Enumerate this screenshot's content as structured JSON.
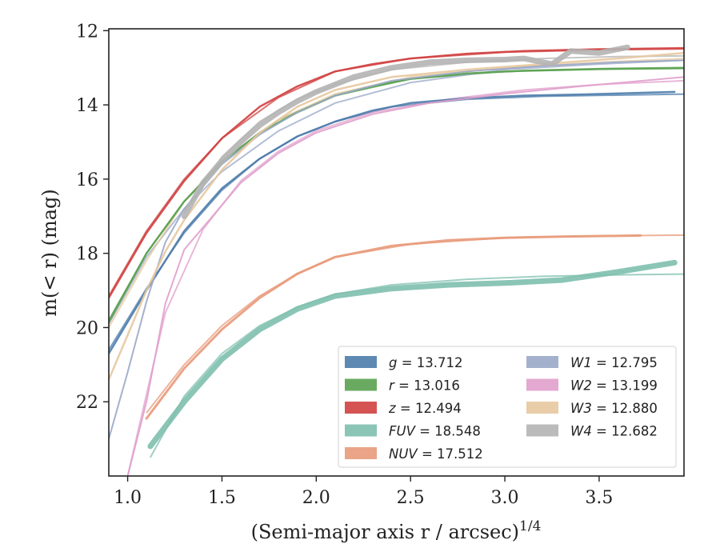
{
  "chart_data": {
    "type": "line",
    "title": "",
    "xlabel_main": "(Semi-major axis r / arcsec)",
    "xlabel_sup": "1/4",
    "ylabel": "m(< r) (mag)",
    "xlim": [
      0.9,
      3.95
    ],
    "ylim": [
      24.0,
      11.95
    ],
    "y_inverted": true,
    "x_ticks": [
      1.0,
      1.5,
      2.0,
      2.5,
      3.0,
      3.5
    ],
    "x_tick_labels": [
      "1.0",
      "1.5",
      "2.0",
      "2.5",
      "3.0",
      "3.5"
    ],
    "y_ticks": [
      12,
      14,
      16,
      18,
      20,
      22
    ],
    "y_tick_labels": [
      "12",
      "14",
      "16",
      "18",
      "20",
      "22"
    ],
    "grid": false,
    "legend_position": "lower-right",
    "legend_columns": 2,
    "series": [
      {
        "name": "g",
        "label": "g = 13.712",
        "color": "#4c7cab",
        "band_width": 2.5,
        "x": [
          0.9,
          1.1,
          1.3,
          1.5,
          1.7,
          1.9,
          2.1,
          2.3,
          2.5,
          2.8,
          3.1,
          3.4,
          3.9
        ],
        "y": [
          20.7,
          19.0,
          17.4,
          16.25,
          15.45,
          14.85,
          14.45,
          14.15,
          13.95,
          13.82,
          13.75,
          13.72,
          13.65
        ],
        "fit_x": [
          0.9,
          1.1,
          1.3,
          1.5,
          1.7,
          1.9,
          2.1,
          2.4,
          2.8,
          3.2,
          3.95
        ],
        "fit_y": [
          20.6,
          18.95,
          17.45,
          16.3,
          15.45,
          14.85,
          14.45,
          14.05,
          13.85,
          13.77,
          13.71
        ]
      },
      {
        "name": "r",
        "label": "r = 13.016",
        "color": "#59a14f",
        "band_width": 2.5,
        "x": [
          0.9,
          1.1,
          1.3,
          1.5,
          1.7,
          1.9,
          2.1,
          2.3,
          2.5,
          2.8,
          3.1,
          3.5,
          3.95
        ],
        "y": [
          19.85,
          18.0,
          16.6,
          15.55,
          14.75,
          14.2,
          13.75,
          13.5,
          13.3,
          13.15,
          13.08,
          13.03,
          13.0
        ],
        "fit_x": [
          0.9,
          1.1,
          1.3,
          1.5,
          1.8,
          2.1,
          2.5,
          3.0,
          3.5,
          3.95
        ],
        "fit_y": [
          19.8,
          18.0,
          16.6,
          15.5,
          14.4,
          13.75,
          13.3,
          13.1,
          13.04,
          13.02
        ]
      },
      {
        "name": "z",
        "label": "z = 12.494",
        "color": "#d04040",
        "band_width": 2.5,
        "x": [
          0.9,
          1.1,
          1.3,
          1.5,
          1.7,
          1.9,
          2.1,
          2.3,
          2.5,
          2.8,
          3.1,
          3.5,
          3.95
        ],
        "y": [
          19.2,
          17.45,
          16.05,
          14.9,
          14.05,
          13.5,
          13.1,
          12.9,
          12.75,
          12.62,
          12.55,
          12.5,
          12.47
        ],
        "fit_x": [
          0.9,
          1.1,
          1.3,
          1.5,
          1.8,
          2.1,
          2.5,
          3.0,
          3.5,
          3.95
        ],
        "fit_y": [
          19.15,
          17.4,
          16.0,
          14.9,
          13.8,
          13.1,
          12.75,
          12.58,
          12.52,
          12.49
        ]
      },
      {
        "name": "FUV",
        "label": "FUV = 18.548",
        "color": "#7ebfad",
        "band_width": 7,
        "x": [
          1.12,
          1.3,
          1.5,
          1.7,
          1.9,
          2.1,
          2.4,
          2.7,
          3.0,
          3.3,
          3.6,
          3.9
        ],
        "y": [
          23.2,
          22.0,
          20.85,
          20.05,
          19.5,
          19.15,
          18.95,
          18.85,
          18.8,
          18.72,
          18.5,
          18.25
        ],
        "fit_x": [
          1.12,
          1.3,
          1.5,
          1.7,
          1.9,
          2.1,
          2.4,
          2.8,
          3.2,
          3.6,
          3.95
        ],
        "fit_y": [
          23.5,
          21.85,
          20.7,
          19.95,
          19.45,
          19.1,
          18.85,
          18.7,
          18.62,
          18.58,
          18.56
        ]
      },
      {
        "name": "NUV",
        "label": "NUV = 17.512",
        "color": "#e89a7a",
        "band_width": 3,
        "x": [
          1.1,
          1.3,
          1.5,
          1.7,
          1.9,
          2.1,
          2.4,
          2.7,
          3.0,
          3.3,
          3.72
        ],
        "y": [
          22.45,
          21.1,
          20.05,
          19.2,
          18.55,
          18.1,
          17.8,
          17.65,
          17.58,
          17.55,
          17.52
        ],
        "fit_x": [
          1.1,
          1.3,
          1.5,
          1.7,
          1.9,
          2.1,
          2.5,
          3.0,
          3.5,
          3.95
        ],
        "fit_y": [
          22.3,
          21.0,
          19.95,
          19.15,
          18.55,
          18.1,
          17.75,
          17.58,
          17.53,
          17.51
        ]
      },
      {
        "name": "W1",
        "label": "W1 = 12.795",
        "color": "#9aa8c8",
        "band_width": 2,
        "x": [
          0.9,
          1.0,
          1.1,
          1.2,
          1.3,
          1.5,
          1.7,
          1.9,
          2.1,
          2.4,
          2.8,
          3.2,
          3.6,
          3.95
        ],
        "y": [
          23.0,
          21.2,
          19.3,
          17.7,
          16.8,
          15.6,
          14.8,
          14.2,
          13.75,
          13.35,
          13.1,
          12.95,
          12.85,
          12.8
        ],
        "fit_x": [
          0.9,
          1.1,
          1.3,
          1.5,
          1.8,
          2.1,
          2.5,
          3.0,
          3.5,
          3.95
        ],
        "fit_y": [
          19.9,
          18.1,
          16.8,
          15.8,
          14.7,
          13.95,
          13.4,
          13.05,
          12.9,
          12.8
        ]
      },
      {
        "name": "W2",
        "label": "W2 = 13.199",
        "color": "#e0a0cc",
        "band_width": 2,
        "x": [
          1.0,
          1.1,
          1.2,
          1.3,
          1.4,
          1.6,
          1.8,
          2.0,
          2.3,
          2.6,
          3.0,
          3.4,
          3.95
        ],
        "y": [
          24.0,
          22.0,
          19.35,
          17.9,
          17.3,
          16.1,
          15.3,
          14.75,
          14.25,
          13.95,
          13.7,
          13.5,
          13.25
        ],
        "fit_x": [
          1.0,
          1.2,
          1.4,
          1.6,
          1.8,
          2.0,
          2.3,
          2.7,
          3.1,
          3.5,
          3.95
        ],
        "fit_y": [
          24.0,
          19.6,
          17.35,
          16.05,
          15.25,
          14.7,
          14.2,
          13.85,
          13.6,
          13.45,
          13.35
        ]
      },
      {
        "name": "W3",
        "label": "W3 = 12.880",
        "color": "#e7c89e",
        "band_width": 2.5,
        "x": [
          0.9,
          1.0,
          1.1,
          1.2,
          1.3,
          1.5,
          1.7,
          1.9,
          2.1,
          2.4,
          2.8,
          3.2,
          3.6,
          3.95
        ],
        "y": [
          21.4,
          20.2,
          19.0,
          17.95,
          17.1,
          15.75,
          14.75,
          14.05,
          13.6,
          13.25,
          13.05,
          12.9,
          12.75,
          12.6
        ],
        "fit_x": [
          0.9,
          1.1,
          1.3,
          1.5,
          1.8,
          2.1,
          2.5,
          3.0,
          3.5,
          3.95
        ],
        "fit_y": [
          20.0,
          18.2,
          16.6,
          15.5,
          14.4,
          13.7,
          13.25,
          13.0,
          12.85,
          12.75
        ]
      },
      {
        "name": "W4",
        "label": "W4 = 12.682",
        "color": "#b4b4b4",
        "band_width": 7,
        "x": [
          1.3,
          1.4,
          1.5,
          1.6,
          1.7,
          1.8,
          1.9,
          2.0,
          2.1,
          2.2,
          2.4,
          2.6,
          2.8,
          3.0,
          3.1,
          3.25,
          3.35,
          3.5,
          3.65
        ],
        "y": [
          17.0,
          16.1,
          15.5,
          15.0,
          14.55,
          14.2,
          13.9,
          13.65,
          13.45,
          13.25,
          13.0,
          12.85,
          12.8,
          12.78,
          12.75,
          12.9,
          12.55,
          12.6,
          12.45
        ],
        "fit_x": [
          1.3,
          1.5,
          1.7,
          1.9,
          2.1,
          2.4,
          2.8,
          3.2,
          3.6,
          3.95
        ],
        "fit_y": [
          16.9,
          15.4,
          14.45,
          13.85,
          13.45,
          13.05,
          12.85,
          12.75,
          12.7,
          12.68
        ]
      }
    ]
  }
}
